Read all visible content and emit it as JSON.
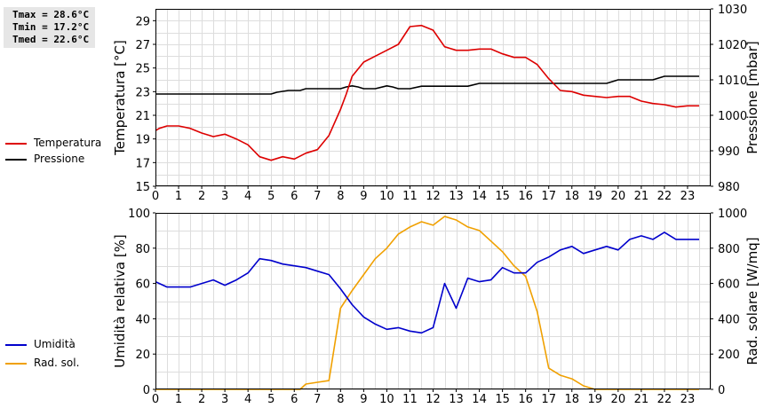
{
  "stats": {
    "tmax": "Tmax = 28.6°C",
    "tmin": "Tmin = 17.2°C",
    "tmed": "Tmed = 22.6°C"
  },
  "legend_top": [
    {
      "label": "Temperatura",
      "color": "#dd0000"
    },
    {
      "label": "Pressione",
      "color": "#000000"
    }
  ],
  "legend_bottom": [
    {
      "label": "Umidità",
      "color": "#0000cc"
    },
    {
      "label": "Rad. sol.",
      "color": "#f0a000"
    }
  ],
  "chart_data": [
    {
      "type": "line",
      "xlabel": "",
      "ylabel": "Temperatura [°C]",
      "y2label": "Pressione [mbar]",
      "xlim": [
        0,
        24
      ],
      "xticks": [
        0,
        1,
        2,
        3,
        4,
        5,
        6,
        7,
        8,
        9,
        10,
        11,
        12,
        13,
        14,
        15,
        16,
        17,
        18,
        19,
        20,
        21,
        22,
        23
      ],
      "ylim": [
        15,
        30
      ],
      "yticks": [
        15,
        17,
        19,
        21,
        23,
        25,
        27,
        29
      ],
      "y2lim": [
        980,
        1030
      ],
      "y2ticks": [
        980,
        990,
        1000,
        1010,
        1020,
        1030
      ],
      "grid": true,
      "series": [
        {
          "name": "Temperatura",
          "axis": "left",
          "color": "#dd0000",
          "x": [
            0,
            0.17,
            0.5,
            1,
            1.5,
            2,
            2.5,
            3,
            3.5,
            4,
            4.5,
            5,
            5.5,
            6,
            6.5,
            7,
            7.5,
            8,
            8.25,
            8.5,
            9,
            9.5,
            10,
            10.5,
            11,
            11.5,
            12,
            12.5,
            13,
            13.5,
            14,
            14.5,
            15,
            15.5,
            16,
            16.5,
            17,
            17.5,
            18,
            18.5,
            19,
            19.5,
            20,
            20.5,
            21,
            21.5,
            22,
            22.5,
            23,
            23.5
          ],
          "values": [
            19.7,
            19.9,
            20.1,
            20.1,
            19.9,
            19.5,
            19.2,
            19.4,
            19.0,
            18.5,
            17.5,
            17.2,
            17.5,
            17.3,
            17.8,
            18.1,
            19.3,
            21.5,
            22.8,
            24.3,
            25.5,
            26.0,
            26.5,
            27.0,
            28.5,
            28.6,
            28.2,
            26.8,
            26.5,
            26.5,
            26.6,
            26.6,
            26.2,
            25.9,
            25.9,
            25.3,
            24.1,
            23.1,
            23.0,
            22.7,
            22.6,
            22.5,
            22.6,
            22.6,
            22.2,
            22.0,
            21.9,
            21.7,
            21.8,
            21.8
          ]
        },
        {
          "name": "Pressione",
          "axis": "right",
          "color": "#000000",
          "x": [
            0,
            5,
            5.25,
            5.75,
            6.25,
            6.5,
            8,
            8.25,
            8.5,
            8.75,
            9,
            9.5,
            10,
            10.25,
            10.5,
            10.75,
            11,
            11.5,
            12,
            12.5,
            13,
            13.5,
            14,
            14.5,
            15,
            15.5,
            16,
            16.5,
            17,
            17.5,
            18,
            18.5,
            19,
            19.5,
            20,
            20.25,
            21,
            21.5,
            22,
            22.5,
            23,
            23.5
          ],
          "values": [
            1006,
            1006,
            1006.5,
            1007,
            1007,
            1007.5,
            1007.5,
            1008,
            1008.3,
            1008,
            1007.5,
            1007.5,
            1008.3,
            1008,
            1007.5,
            1007.5,
            1007.5,
            1008.2,
            1008.2,
            1008.2,
            1008.2,
            1008.2,
            1009,
            1009,
            1009,
            1009,
            1009,
            1009,
            1009,
            1009,
            1009,
            1009,
            1009,
            1009,
            1010,
            1010,
            1010,
            1010,
            1011,
            1011,
            1011,
            1011
          ]
        }
      ]
    },
    {
      "type": "line",
      "xlabel": "",
      "ylabel": "Umidità relativa [%]",
      "y2label": "Rad. solare [W/mq]",
      "xlim": [
        0,
        24
      ],
      "xticks": [
        0,
        1,
        2,
        3,
        4,
        5,
        6,
        7,
        8,
        9,
        10,
        11,
        12,
        13,
        14,
        15,
        16,
        17,
        18,
        19,
        20,
        21,
        22,
        23
      ],
      "ylim": [
        0,
        100
      ],
      "yticks": [
        0,
        20,
        40,
        60,
        80,
        100
      ],
      "y2lim": [
        0,
        1000
      ],
      "y2ticks": [
        0,
        200,
        400,
        600,
        800,
        1000
      ],
      "grid": true,
      "series": [
        {
          "name": "Umidità",
          "axis": "left",
          "color": "#0000cc",
          "x": [
            0,
            0.5,
            1,
            1.5,
            2,
            2.5,
            3,
            3.5,
            4,
            4.5,
            5,
            5.5,
            6,
            6.5,
            7,
            7.5,
            8,
            8.5,
            9,
            9.5,
            10,
            10.5,
            11,
            11.5,
            12,
            12.5,
            13,
            13.5,
            14,
            14.5,
            15,
            15.5,
            16,
            16.5,
            17,
            17.5,
            18,
            18.5,
            19,
            19.5,
            20,
            20.5,
            21,
            21.5,
            22,
            22.5,
            23,
            23.5
          ],
          "values": [
            61,
            58,
            58,
            58,
            60,
            62,
            59,
            62,
            66,
            74,
            73,
            71,
            70,
            69,
            67,
            65,
            57,
            48,
            41,
            37,
            34,
            35,
            33,
            32,
            35,
            60,
            46,
            63,
            61,
            62,
            69,
            66,
            66,
            72,
            75,
            79,
            81,
            77,
            79,
            81,
            79,
            85,
            87,
            85,
            89,
            85,
            85,
            85
          ],
          "note": "Umidità"
        },
        {
          "name": "Rad. sol.",
          "axis": "right",
          "color": "#f0a000",
          "x": [
            0,
            1,
            2,
            3,
            4,
            5,
            6,
            6.25,
            6.5,
            7,
            7.5,
            8,
            8.5,
            9,
            9.5,
            10,
            10.5,
            11,
            11.5,
            12,
            12.5,
            13,
            13.5,
            14,
            14.5,
            15,
            15.5,
            16,
            16.5,
            17,
            17.5,
            18,
            18.5,
            19,
            19.5,
            20,
            21,
            22,
            23,
            23.5
          ],
          "values": [
            0,
            0,
            0,
            0,
            0,
            0,
            0,
            0,
            30,
            40,
            50,
            460,
            560,
            650,
            740,
            800,
            880,
            920,
            950,
            930,
            980,
            960,
            920,
            900,
            840,
            780,
            700,
            640,
            440,
            120,
            80,
            60,
            20,
            0,
            0,
            0,
            0,
            0,
            0,
            0
          ]
        }
      ]
    }
  ]
}
